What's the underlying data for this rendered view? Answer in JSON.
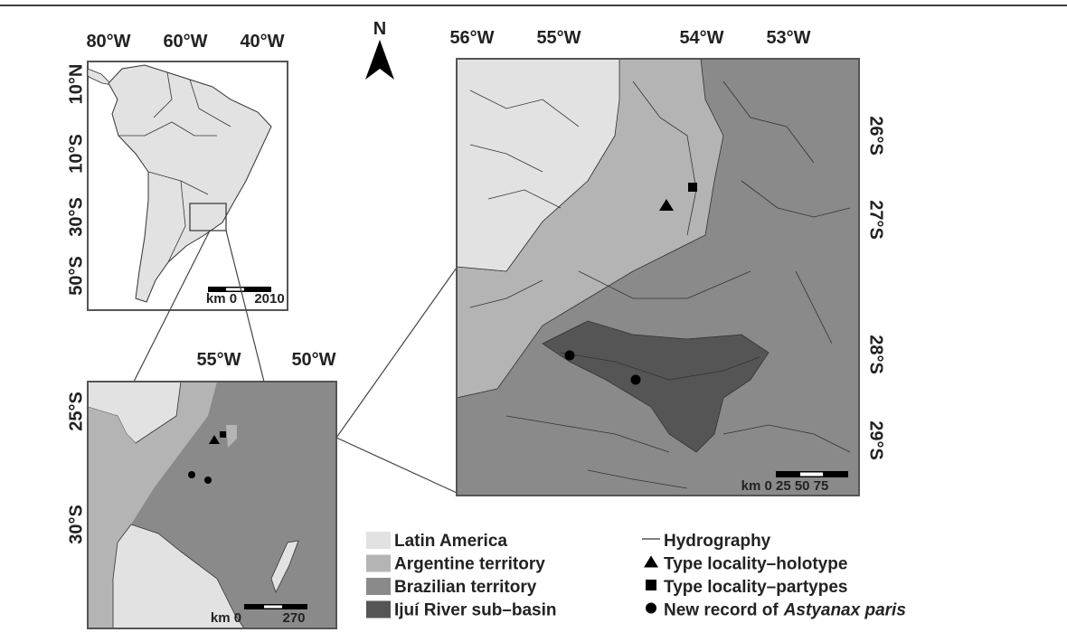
{
  "north_label": "N",
  "maps": [
    {
      "lon_labels": [
        "80°W",
        "60°W",
        "40°W"
      ],
      "lat_labels": [
        "10°N",
        "10°S",
        "30°S",
        "50°S"
      ],
      "scale_labels": [
        "km 0",
        "2010"
      ]
    },
    {
      "lon_labels": [
        "55°W",
        "50°W"
      ],
      "lat_labels": [
        "25°S",
        "30°S"
      ],
      "scale_labels": [
        "km 0",
        "270"
      ]
    },
    {
      "lon_labels": [
        "56°W",
        "55°W",
        "54°W",
        "53°W"
      ],
      "lat_labels": [
        "26°S",
        "27°S",
        "28°S",
        "29°S"
      ],
      "scale_labels": [
        "km 0 25 50 75"
      ]
    }
  ],
  "legend": {
    "areas": [
      {
        "label": "Latin America",
        "color": "#e2e2e2"
      },
      {
        "label": "Argentine territory",
        "color": "#b4b4b4"
      },
      {
        "label": "Brazilian territory",
        "color": "#8a8a8a"
      },
      {
        "label": "Ijuí River sub–basin",
        "color": "#555555"
      }
    ],
    "symbols": [
      {
        "label": "Hydrography"
      },
      {
        "label": "Type locality–holotype"
      },
      {
        "label": "Type locality–partypes"
      },
      {
        "label": "New record of",
        "label_italic": "Astyanax paris"
      }
    ]
  }
}
